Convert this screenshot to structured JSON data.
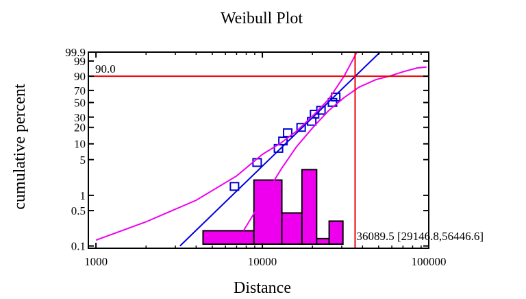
{
  "chart_data": {
    "type": "scatter",
    "title": "Weibull Plot",
    "xlabel": "Distance",
    "ylabel": "cumulative percent",
    "x_scale": "log",
    "y_scale": "weibull-probability",
    "xlim": [
      900,
      100000
    ],
    "ylim": [
      0.09,
      99.9
    ],
    "x_ticks": [
      1000,
      10000,
      100000
    ],
    "x_tick_labels": [
      "1000",
      "10000",
      "100000"
    ],
    "y_ticks": [
      0.1,
      0.5,
      1,
      5,
      10,
      20,
      30,
      50,
      70,
      90,
      99,
      99.9
    ],
    "y_tick_labels": [
      "0.1",
      "0.5",
      "1",
      "5",
      "10",
      "20",
      "30",
      "50",
      "70",
      "90",
      "99",
      "99.9"
    ],
    "grid": false,
    "reference_lines": {
      "horizontal": {
        "y": 90.0,
        "label": "90.0",
        "color": "#ee0000"
      },
      "vertical": {
        "x": 36089.5,
        "label": "36089.5 [29146.8,56446.6]",
        "color": "#ee0000"
      }
    },
    "series": [
      {
        "kind": "points",
        "marker": "square",
        "color": "#0000cc",
        "x": [
          6800,
          9300,
          12500,
          13300,
          14200,
          17100,
          19800,
          20600,
          22500,
          26400,
          27600
        ],
        "y": [
          1.5,
          4.4,
          8.2,
          11.3,
          16.0,
          20.0,
          25.4,
          33.5,
          38.5,
          50.2,
          59.0
        ]
      },
      {
        "kind": "fit-line",
        "color": "#0000dd",
        "x": [
          3200,
          51000
        ],
        "y": [
          0.1,
          99.9
        ]
      },
      {
        "kind": "confidence-upper",
        "color": "#ee00ee",
        "x": [
          1000,
          2000,
          4000,
          7000,
          10000,
          13000,
          16000,
          20000,
          25000,
          31000,
          37000
        ],
        "y": [
          0.13,
          0.3,
          0.8,
          2.4,
          6.3,
          10.5,
          17.0,
          31.0,
          55.0,
          90.0,
          99.9
        ]
      },
      {
        "kind": "confidence-lower",
        "color": "#ee00ee",
        "x": [
          7700,
          10000,
          13000,
          16000,
          20000,
          25000,
          31000,
          38000,
          48000,
          58000,
          70000,
          85000,
          97000
        ],
        "y": [
          0.2,
          0.82,
          3.3,
          8.7,
          19.5,
          38.0,
          58.0,
          75.0,
          86.0,
          90.0,
          94.0,
          96.5,
          97.0
        ]
      }
    ],
    "histogram": {
      "color": "#ee00ee",
      "bins": [
        {
          "x0": 4400,
          "x1": 8900,
          "height": 0.2
        },
        {
          "x0": 8900,
          "x1": 13100,
          "height": 2.0
        },
        {
          "x0": 13100,
          "x1": 17300,
          "height": 0.45
        },
        {
          "x0": 17300,
          "x1": 21200,
          "height": 3.2
        },
        {
          "x0": 21200,
          "x1": 25200,
          "height": 0.14
        },
        {
          "x0": 25200,
          "x1": 30500,
          "height": 0.31
        }
      ]
    }
  }
}
